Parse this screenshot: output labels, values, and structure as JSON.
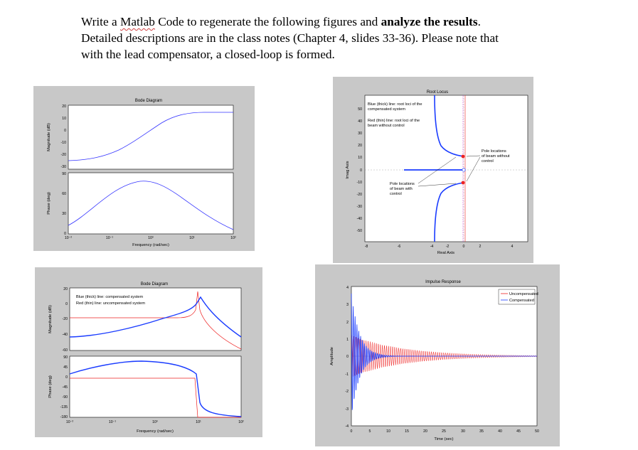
{
  "instructions": {
    "part1": "Write a ",
    "matlab": "Matlab",
    "part2": " Code to regenerate the following figures and ",
    "bold": "analyze the results",
    "part3": ".",
    "line2": "Detailed descriptions are in the class notes (Chapter 4, slides 33-36). Please note that",
    "line3": "with the lead compensator, a closed-loop is formed."
  },
  "fig1": {
    "title": "Bode Diagram",
    "ylabel_mag": "Magnitude (dB)",
    "ylabel_phase": "Phase (deg)",
    "xlabel": "Frequency (rad/sec)",
    "mag_ticks": [
      "20",
      "10",
      "0",
      "-10",
      "-20",
      "-30"
    ],
    "phase_ticks": [
      "90",
      "60",
      "30",
      "0"
    ],
    "x_ticks": [
      "10⁻²",
      "10⁻¹",
      "10⁰",
      "10¹",
      "10²"
    ],
    "color": "#3333ff"
  },
  "fig2": {
    "title": "Root Locus",
    "xlabel": "Real Axis",
    "ylabel": "Imag Axis",
    "y_ticks": [
      "50",
      "40",
      "30",
      "20",
      "10",
      "0",
      "-10",
      "-20",
      "-30",
      "-40",
      "-50"
    ],
    "x_ticks": [
      "-8",
      "-6",
      "-4",
      "-2",
      "0",
      "2",
      "4"
    ],
    "note1_line1": "Blue (thick) line: root loci of the",
    "note1_line2": "compensated system",
    "note2_line1": "Red (thin) line: root loci of the",
    "note2_line2": "beam without control",
    "note3_line1": "Pole locations",
    "note3_line2": "of beam without",
    "note3_line3": "control",
    "note4_line1": "Pole locations",
    "note4_line2": "of beam with",
    "note4_line3": "control",
    "blue": "#1a3cff",
    "red": "#ee2222"
  },
  "fig3": {
    "title": "Bode Diagram",
    "ylabel_mag": "Magnitude (dB)",
    "ylabel_phase": "Phase (deg)",
    "xlabel": "Frequency (rad/sec)",
    "legend1": "Blue (thick) line: compensated system",
    "legend2": "Red (thin) line: uncompensated system",
    "mag_ticks": [
      "20",
      "0",
      "-20",
      "-40",
      "-60"
    ],
    "phase_ticks": [
      "90",
      "45",
      "0",
      "-45",
      "-90",
      "-135",
      "-180"
    ],
    "x_ticks": [
      "10⁻²",
      "10⁻¹",
      "10⁰",
      "10¹",
      "10²"
    ]
  },
  "fig4": {
    "title": "Impulse Response",
    "ylabel": "Amplitude",
    "xlabel": "Time (sec)",
    "legend_uncomp": "Uncompensated",
    "legend_comp": "Compensated",
    "y_ticks": [
      "4",
      "3",
      "2",
      "1",
      "0",
      "-1",
      "-2",
      "-3",
      "-4"
    ],
    "x_ticks": [
      "0",
      "5",
      "10",
      "15",
      "20",
      "25",
      "30",
      "35",
      "40",
      "45",
      "50"
    ]
  }
}
